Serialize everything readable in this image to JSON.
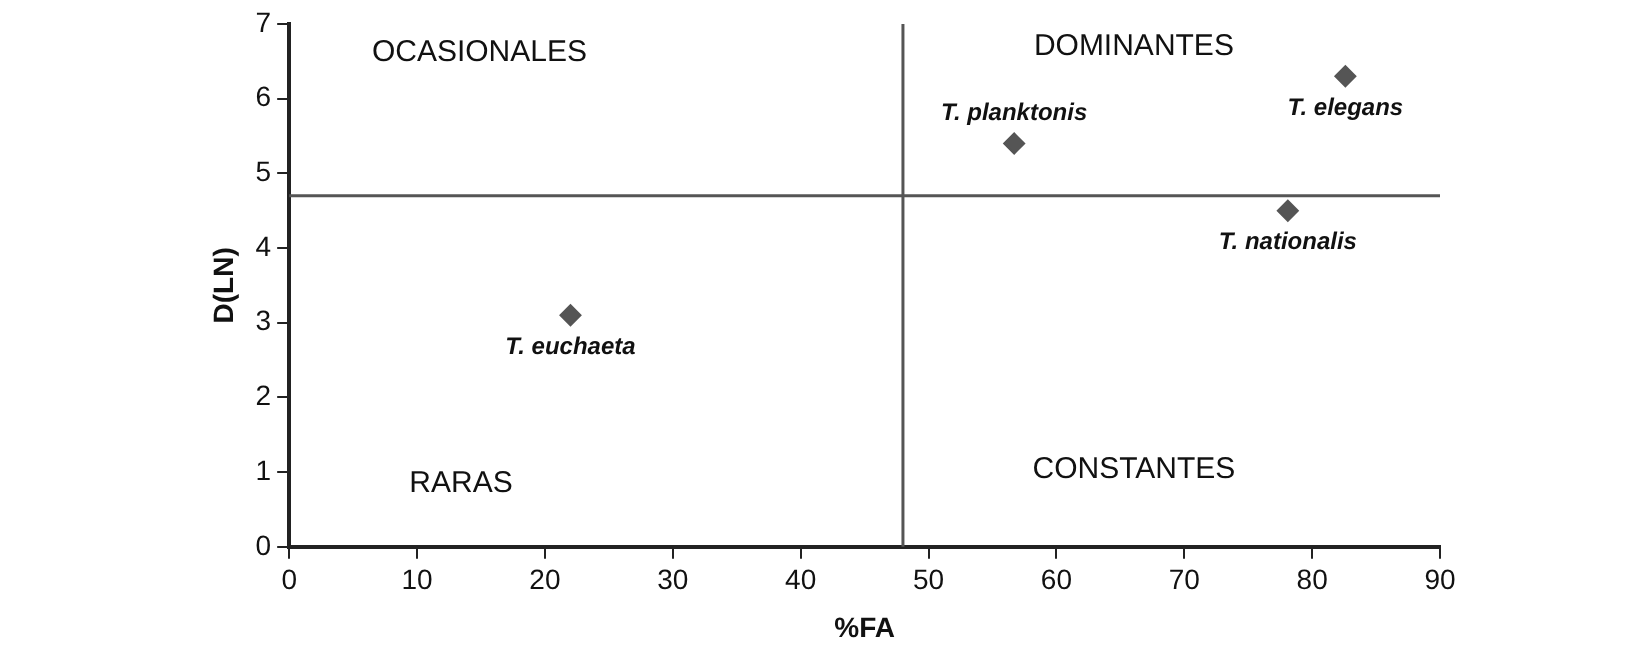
{
  "chart_data": {
    "type": "scatter",
    "xlabel": "%FA",
    "ylabel": "D(LN)",
    "xlim": [
      0,
      90
    ],
    "xticks": [
      0,
      10,
      20,
      30,
      40,
      50,
      60,
      70,
      80,
      90
    ],
    "ylim": [
      0,
      7
    ],
    "yticks": [
      0,
      1,
      2,
      3,
      4,
      5,
      6,
      7
    ],
    "grid": false,
    "legend": false,
    "marker": "diamond",
    "series": [
      {
        "name": "T. euchaeta",
        "color": "#555555",
        "x": [
          22
        ],
        "values": [
          3.1
        ]
      },
      {
        "name": "T. planktonis",
        "color": "#555555",
        "x": [
          56.7
        ],
        "values": [
          5.4
        ]
      },
      {
        "name": "T. elegans",
        "color": "#555555",
        "x": [
          82.6
        ],
        "values": [
          6.3
        ]
      },
      {
        "name": "T. nationalis",
        "color": "#555555",
        "x": [
          78.1
        ],
        "values": [
          4.5
        ]
      }
    ],
    "ref_lines": [
      {
        "axis": "x",
        "value": 48,
        "color": "#555555"
      },
      {
        "axis": "y",
        "value": 4.7,
        "color": "#555555"
      }
    ],
    "annotations": [
      "OCASIONALES",
      "DOMINANTES",
      "RARAS",
      "CONSTANTES"
    ]
  }
}
